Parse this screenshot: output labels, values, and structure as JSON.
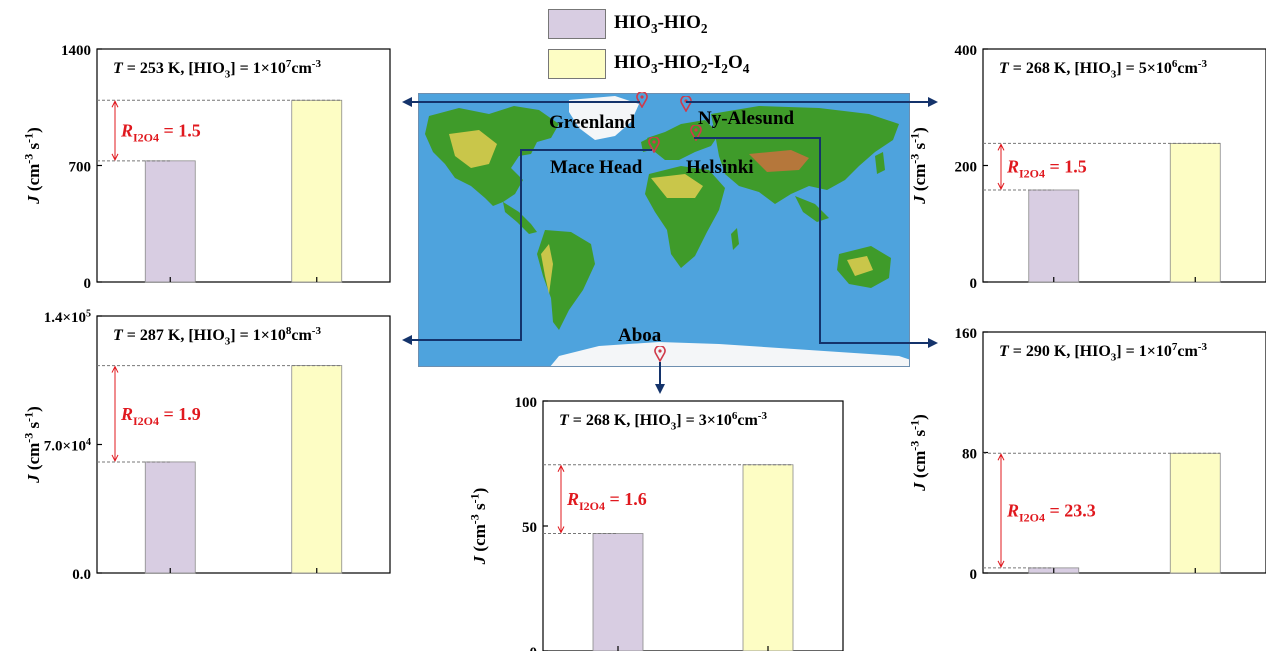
{
  "legend": [
    {
      "label_parts": [
        [
          "HIO",
          ""
        ],
        [
          "3",
          "sub"
        ],
        [
          "-HIO",
          ""
        ],
        [
          "2",
          "sub"
        ]
      ],
      "color": "#d8cde2"
    },
    {
      "label_parts": [
        [
          "HIO",
          ""
        ],
        [
          "3",
          "sub"
        ],
        [
          "-HIO",
          ""
        ],
        [
          "2",
          "sub"
        ],
        [
          "-I",
          ""
        ],
        [
          "2",
          "sub"
        ],
        [
          "O",
          ""
        ],
        [
          "4",
          "sub"
        ]
      ],
      "color": "#fdfdc4"
    }
  ],
  "map": {
    "sites": [
      {
        "name": "Greenland"
      },
      {
        "name": "Ny-Alesund"
      },
      {
        "name": "Mace Head"
      },
      {
        "name": "Helsinki"
      },
      {
        "name": "Aboa"
      }
    ],
    "colors": {
      "ocean": "#4ea3dd",
      "land_low": "#3f9b2a",
      "land_mid": "#c9c64a",
      "land_high": "#b5773b",
      "ice": "#f4f6f8"
    }
  },
  "colors": {
    "arrow": "#14336b",
    "annotation": "#e0181e",
    "bar_border": "#8a8a8a"
  },
  "chart_data": [
    {
      "type": "bar",
      "site": "Greenland",
      "title_parts": [
        [
          "T",
          "i"
        ],
        [
          " = 253 K, [HIO",
          ""
        ],
        [
          "3",
          "sub"
        ],
        [
          "] = 1×10",
          ""
        ],
        [
          "7",
          "sup"
        ],
        [
          "cm",
          ""
        ],
        [
          "-3",
          "sup"
        ]
      ],
      "ylabel_parts": [
        [
          "J",
          "i"
        ],
        [
          " (cm",
          ""
        ],
        [
          "-3",
          "sup"
        ],
        [
          " s",
          ""
        ],
        [
          "-1",
          "sup"
        ],
        [
          ")",
          ""
        ]
      ],
      "categories": [
        "HIO3-HIO2",
        "HIO3-HIO2-I2O4"
      ],
      "values": [
        728,
        1092
      ],
      "ylim": [
        0,
        1400
      ],
      "yticks": [
        0,
        700,
        1400
      ],
      "ytick_labels": [
        [
          [
            "0",
            ""
          ]
        ],
        [
          [
            "700",
            ""
          ]
        ],
        [
          [
            "1400",
            ""
          ]
        ]
      ],
      "annotation_parts": [
        [
          "R",
          "i"
        ],
        [
          "I2O4",
          "sub"
        ],
        [
          " = 1.5",
          ""
        ]
      ],
      "annotation_pos": "left"
    },
    {
      "type": "bar",
      "site": "Ny-Alesund",
      "title_parts": [
        [
          "T",
          "i"
        ],
        [
          " = 268 K, [HIO",
          ""
        ],
        [
          "3",
          "sub"
        ],
        [
          "] = 5×10",
          ""
        ],
        [
          "6",
          "sup"
        ],
        [
          "cm",
          ""
        ],
        [
          "-3",
          "sup"
        ]
      ],
      "ylabel_parts": [
        [
          "J",
          "i"
        ],
        [
          " (cm",
          ""
        ],
        [
          "-3",
          "sup"
        ],
        [
          " s",
          ""
        ],
        [
          "-1",
          "sup"
        ],
        [
          ")",
          ""
        ]
      ],
      "categories": [
        "HIO3-HIO2",
        "HIO3-HIO2-I2O4"
      ],
      "values": [
        158,
        238
      ],
      "ylim": [
        0,
        400
      ],
      "yticks": [
        0,
        200,
        400
      ],
      "ytick_labels": [
        [
          [
            "0",
            ""
          ]
        ],
        [
          [
            "200",
            ""
          ]
        ],
        [
          [
            "400",
            ""
          ]
        ]
      ],
      "annotation_parts": [
        [
          "R",
          "i"
        ],
        [
          "I2O4",
          "sub"
        ],
        [
          " = 1.5",
          ""
        ]
      ],
      "annotation_pos": "left"
    },
    {
      "type": "bar",
      "site": "Mace Head",
      "title_parts": [
        [
          "T",
          "i"
        ],
        [
          " = 287 K, [HIO",
          ""
        ],
        [
          "3",
          "sub"
        ],
        [
          "] = 1×10",
          ""
        ],
        [
          "8",
          "sup"
        ],
        [
          "cm",
          ""
        ],
        [
          "-3",
          "sup"
        ]
      ],
      "ylabel_parts": [
        [
          "J",
          "i"
        ],
        [
          " (cm",
          ""
        ],
        [
          "-3",
          "sup"
        ],
        [
          " s",
          ""
        ],
        [
          "-1",
          "sup"
        ],
        [
          ")",
          ""
        ]
      ],
      "categories": [
        "HIO3-HIO2",
        "HIO3-HIO2-I2O4"
      ],
      "values": [
        60500,
        113000
      ],
      "ylim": [
        0,
        140000
      ],
      "yticks": [
        0,
        70000,
        140000
      ],
      "ytick_labels": [
        [
          [
            "0.0",
            ""
          ]
        ],
        [
          [
            "7.0×10",
            ""
          ],
          [
            "4",
            "sup"
          ]
        ],
        [
          [
            "1.4×10",
            ""
          ],
          [
            "5",
            "sup"
          ]
        ]
      ],
      "annotation_parts": [
        [
          "R",
          "i"
        ],
        [
          "I2O4",
          "sub"
        ],
        [
          " = 1.9",
          ""
        ]
      ],
      "annotation_pos": "left"
    },
    {
      "type": "bar",
      "site": "Aboa",
      "title_parts": [
        [
          "T",
          "i"
        ],
        [
          " = 268 K, [HIO",
          ""
        ],
        [
          "3",
          "sub"
        ],
        [
          "] = 3×10",
          ""
        ],
        [
          "6",
          "sup"
        ],
        [
          "cm",
          ""
        ],
        [
          "-3",
          "sup"
        ]
      ],
      "ylabel_parts": [
        [
          "J",
          "i"
        ],
        [
          " (cm",
          ""
        ],
        [
          "-3",
          "sup"
        ],
        [
          " s",
          ""
        ],
        [
          "-1",
          "sup"
        ],
        [
          ")",
          ""
        ]
      ],
      "categories": [
        "HIO3-HIO2",
        "HIO3-HIO2-I2O4"
      ],
      "values": [
        47,
        74.5
      ],
      "ylim": [
        0,
        100
      ],
      "yticks": [
        0,
        50,
        100
      ],
      "ytick_labels": [
        [
          [
            "0",
            ""
          ]
        ],
        [
          [
            "50",
            ""
          ]
        ],
        [
          [
            "100",
            ""
          ]
        ]
      ],
      "annotation_parts": [
        [
          "R",
          "i"
        ],
        [
          "I2O4",
          "sub"
        ],
        [
          " = 1.6",
          ""
        ]
      ],
      "annotation_pos": "left"
    },
    {
      "type": "bar",
      "site": "Helsinki",
      "title_parts": [
        [
          "T",
          "i"
        ],
        [
          " = 290 K, [HIO",
          ""
        ],
        [
          "3",
          "sub"
        ],
        [
          "] = 1×10",
          ""
        ],
        [
          "7",
          "sup"
        ],
        [
          "cm",
          ""
        ],
        [
          "-3",
          "sup"
        ]
      ],
      "ylabel_parts": [
        [
          "J",
          "i"
        ],
        [
          " (cm",
          ""
        ],
        [
          "-3",
          "sup"
        ],
        [
          " s",
          ""
        ],
        [
          "-1",
          "sup"
        ],
        [
          ")",
          ""
        ]
      ],
      "categories": [
        "HIO3-HIO2",
        "HIO3-HIO2-I2O4"
      ],
      "values": [
        3.4,
        79.5
      ],
      "ylim": [
        0,
        160
      ],
      "yticks": [
        0,
        80,
        160
      ],
      "ytick_labels": [
        [
          [
            "0",
            ""
          ]
        ],
        [
          [
            "80",
            ""
          ]
        ],
        [
          [
            "160",
            ""
          ]
        ]
      ],
      "annotation_parts": [
        [
          "R",
          "i"
        ],
        [
          "I2O4",
          "sub"
        ],
        [
          " = 23.3",
          ""
        ]
      ],
      "annotation_pos": "middle"
    }
  ]
}
